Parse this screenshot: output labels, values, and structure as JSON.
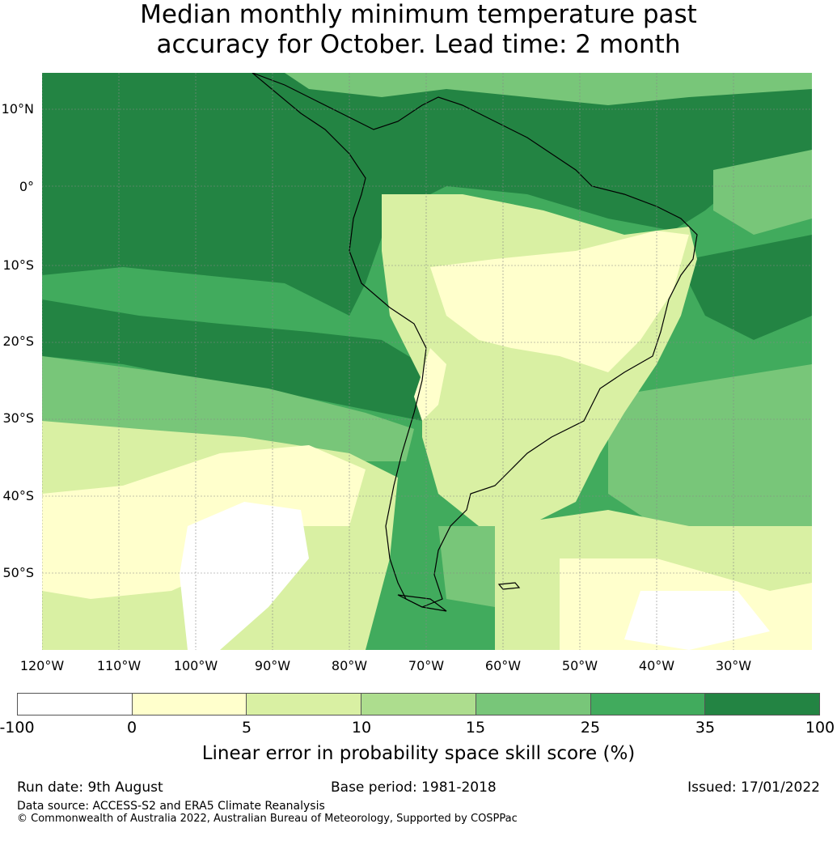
{
  "title": {
    "line1": "Median monthly minimum temperature past",
    "line2": "accuracy for October. Lead time: 2 month"
  },
  "map": {
    "region": "South America",
    "lat_labels": [
      "10°N",
      "0°",
      "10°S",
      "20°S",
      "30°S",
      "40°S",
      "50°S"
    ],
    "lon_labels": [
      "120°W",
      "110°W",
      "100°W",
      "90°W",
      "80°W",
      "70°W",
      "60°W",
      "50°W",
      "40°W",
      "30°W"
    ]
  },
  "colorbar": {
    "tick_labels": [
      "-100",
      "0",
      "5",
      "10",
      "15",
      "25",
      "35",
      "100"
    ],
    "colors": [
      "#ffffff",
      "#ffffcc",
      "#d9f0a3",
      "#addd8e",
      "#78c679",
      "#41ab5d",
      "#238443"
    ],
    "label": "Linear error in probability space skill score (%)"
  },
  "footer": {
    "run_date": "Run date: 9th August",
    "base_period": "Base period: 1981-2018",
    "issued": "Issued: 17/01/2022",
    "data_source": "Data source: ACCESS-S2 and ERA5 Climate Reanalysis",
    "copyright": "© Commonwealth of Australia 2022, Australian Bureau of Meteorology, Supported by COSPPac"
  }
}
